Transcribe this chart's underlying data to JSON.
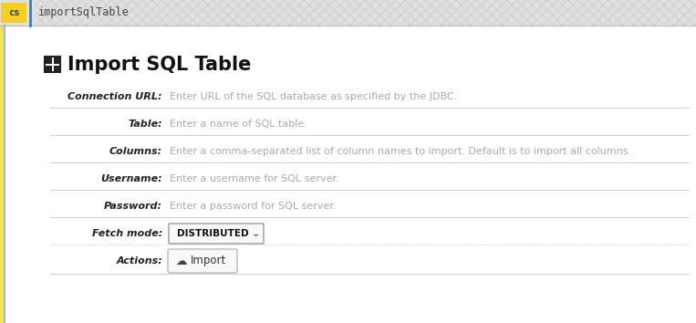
{
  "main_bg": "#ffffff",
  "header_bg": "#e0e0e0",
  "header_text": "importSqlTable",
  "header_font_color": "#444444",
  "cs_bg": "#f5d020",
  "cs_text": "cs",
  "title": "Import SQL Table",
  "title_font_color": "#111111",
  "yellow_bar_color": "#f5e44a",
  "blue_line_color": "#3a7abf",
  "fields": [
    {
      "label": "Connection URL:",
      "placeholder": "Enter URL of the SQL database as specified by the JDBC."
    },
    {
      "label": "Table:",
      "placeholder": "Enter a name of SQL table."
    },
    {
      "label": "Columns:",
      "placeholder": "Enter a comma-separated list of column names to import. Default is to import all columns."
    },
    {
      "label": "Username:",
      "placeholder": "Enter a username for SQL server."
    },
    {
      "label": "Password:",
      "placeholder": "Enter a password for SQL server."
    }
  ],
  "fetch_label": "Fetch mode:",
  "fetch_value": "DISTRIBUTED",
  "actions_label": "Actions:",
  "label_color": "#222222",
  "placeholder_color": "#aaaaaa",
  "dropdown_border": "#999999",
  "button_border": "#bbbbbb",
  "button_bg": "#f8f8f8",
  "button_text_color": "#333333",
  "separator_color": "#cccccc"
}
